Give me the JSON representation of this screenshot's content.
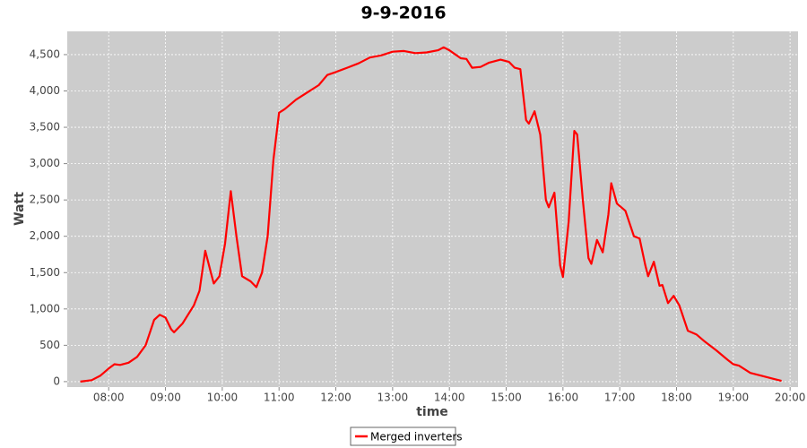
{
  "chart_data": {
    "type": "line",
    "title": "9-9-2016",
    "xlabel": "time",
    "ylabel": "Watt",
    "x": [
      7.5,
      7.7,
      7.85,
      8.0,
      8.1,
      8.2,
      8.35,
      8.5,
      8.65,
      8.8,
      8.9,
      9.0,
      9.1,
      9.15,
      9.3,
      9.5,
      9.6,
      9.7,
      9.8,
      9.85,
      9.95,
      10.05,
      10.15,
      10.25,
      10.35,
      10.5,
      10.6,
      10.7,
      10.8,
      10.9,
      11.0,
      11.1,
      11.3,
      11.5,
      11.7,
      11.85,
      12.0,
      12.2,
      12.4,
      12.6,
      12.8,
      13.0,
      13.2,
      13.4,
      13.6,
      13.8,
      13.9,
      14.0,
      14.2,
      14.3,
      14.4,
      14.55,
      14.7,
      14.9,
      15.05,
      15.15,
      15.25,
      15.35,
      15.4,
      15.5,
      15.6,
      15.7,
      15.75,
      15.85,
      15.95,
      16.0,
      16.1,
      16.2,
      16.25,
      16.35,
      16.45,
      16.5,
      16.6,
      16.7,
      16.8,
      16.85,
      16.95,
      17.1,
      17.25,
      17.35,
      17.45,
      17.5,
      17.6,
      17.7,
      17.75,
      17.85,
      17.95,
      18.05,
      18.2,
      18.35,
      18.5,
      18.7,
      18.9,
      19.0,
      19.1,
      19.3,
      19.5,
      19.7,
      19.85
    ],
    "series": [
      {
        "name": "Merged inverters",
        "color": "#ff0000",
        "values": [
          0,
          20,
          80,
          180,
          240,
          230,
          260,
          340,
          500,
          850,
          920,
          880,
          720,
          680,
          800,
          1050,
          1250,
          1800,
          1500,
          1350,
          1450,
          1900,
          2620,
          2000,
          1450,
          1380,
          1300,
          1500,
          2000,
          3050,
          3700,
          3750,
          3880,
          3980,
          4080,
          4220,
          4260,
          4320,
          4380,
          4460,
          4490,
          4540,
          4550,
          4520,
          4530,
          4560,
          4600,
          4560,
          4450,
          4440,
          4320,
          4330,
          4390,
          4430,
          4400,
          4320,
          4300,
          3600,
          3550,
          3720,
          3400,
          2500,
          2400,
          2600,
          1600,
          1440,
          2200,
          3450,
          3400,
          2500,
          1700,
          1620,
          1950,
          1780,
          2300,
          2730,
          2450,
          2350,
          2000,
          1970,
          1600,
          1450,
          1650,
          1320,
          1330,
          1080,
          1180,
          1050,
          700,
          650,
          550,
          430,
          300,
          240,
          220,
          120,
          80,
          40,
          10
        ]
      }
    ],
    "xlim": [
      7.27,
      20.14
    ],
    "xticks": [
      {
        "value": 8,
        "label": "08:00"
      },
      {
        "value": 9,
        "label": "09:00"
      },
      {
        "value": 10,
        "label": "10:00"
      },
      {
        "value": 11,
        "label": "11:00"
      },
      {
        "value": 12,
        "label": "12:00"
      },
      {
        "value": 13,
        "label": "13:00"
      },
      {
        "value": 14,
        "label": "14:00"
      },
      {
        "value": 15,
        "label": "15:00"
      },
      {
        "value": 16,
        "label": "16:00"
      },
      {
        "value": 17,
        "label": "17:00"
      },
      {
        "value": 18,
        "label": "18:00"
      },
      {
        "value": 19,
        "label": "19:00"
      },
      {
        "value": 20,
        "label": "20:00"
      }
    ],
    "ylim": [
      -75,
      4820
    ],
    "yticks": [
      0,
      500,
      {
        "value": 1000,
        "label": "1,000"
      },
      {
        "value": 1500,
        "label": "1,500"
      },
      {
        "value": 2000,
        "label": "2,000"
      },
      {
        "value": 2500,
        "label": "2,500"
      },
      {
        "value": 3000,
        "label": "3,000"
      },
      {
        "value": 3500,
        "label": "3,500"
      },
      {
        "value": 4000,
        "label": "4,000"
      },
      {
        "value": 4500,
        "label": "4,500"
      }
    ],
    "grid": true,
    "legend": "bottom"
  }
}
